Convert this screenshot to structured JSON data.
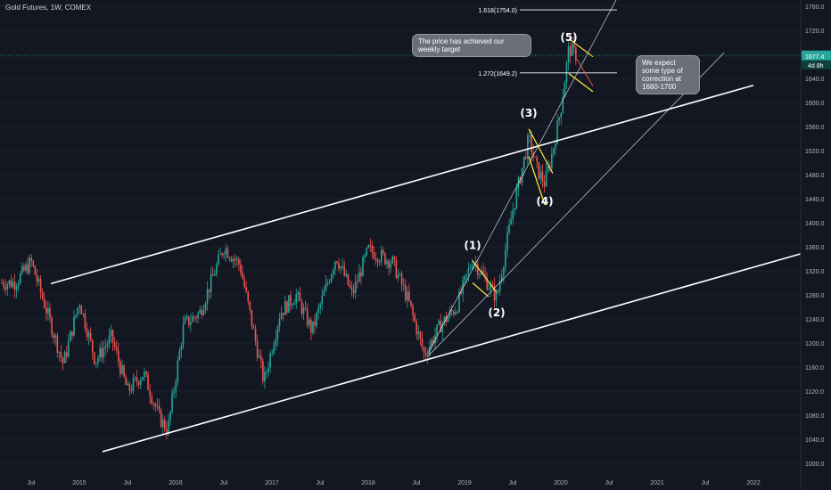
{
  "header": {
    "symbol": "Gold Futures, 1W, COMEX"
  },
  "annotations": {
    "target_note": "The price has achieved our weekly target",
    "correction_note": "We expect some type of correction at 1680-1700"
  },
  "price_tag": {
    "value": "1677.4",
    "countdown": "4d 8h"
  },
  "colors": {
    "background": "#131722",
    "up": "#26a69a",
    "down": "#ef5350",
    "trendline": "#ffffff",
    "fib": "#ffffff",
    "wave_marker": "#ffeb3b",
    "price_line": "#26a69a",
    "axis_text": "#b2b5be"
  },
  "chart_data": {
    "type": "candlestick",
    "title": "Gold Futures, 1W, COMEX",
    "ylim": [
      985,
      1773
    ],
    "x_tick_labels": [
      "Jul",
      "2015",
      "Jul",
      "2016",
      "Jul",
      "2017",
      "Jul",
      "2018",
      "Jul",
      "2019",
      "Jul",
      "2020",
      "Jul",
      "2021",
      "Jul",
      "2022"
    ],
    "y_tick_labels": [
      1000,
      1040,
      1080,
      1120,
      1160,
      1200,
      1240,
      1280,
      1320,
      1360,
      1400,
      1440,
      1480,
      1520,
      1560,
      1600,
      1640,
      1680,
      1720,
      1760
    ],
    "last_price": 1677.4,
    "fib_levels": [
      {
        "label": "1.618(1754.0)",
        "value": 1754.0
      },
      {
        "label": "1.272(1649.2)",
        "value": 1649.2
      }
    ],
    "wave_labels": [
      {
        "label": "(1)",
        "date": "2019-02",
        "price": 1346
      },
      {
        "label": "(2)",
        "date": "2019-05",
        "price": 1270
      },
      {
        "label": "(3)",
        "date": "2019-09",
        "price": 1566
      },
      {
        "label": "(4)",
        "date": "2019-11",
        "price": 1455
      },
      {
        "label": "(5)",
        "date": "2020-02",
        "price": 1692
      }
    ],
    "price_path": [
      [
        "2014-05",
        1300
      ],
      [
        "2014-07",
        1335
      ],
      [
        "2014-09",
        1250
      ],
      [
        "2014-11",
        1165
      ],
      [
        "2015-01",
        1270
      ],
      [
        "2015-03",
        1170
      ],
      [
        "2015-05",
        1210
      ],
      [
        "2015-07",
        1120
      ],
      [
        "2015-09",
        1150
      ],
      [
        "2015-11",
        1075
      ],
      [
        "2015-12",
        1055
      ],
      [
        "2016-02",
        1230
      ],
      [
        "2016-04",
        1250
      ],
      [
        "2016-07",
        1360
      ],
      [
        "2016-09",
        1330
      ],
      [
        "2016-11",
        1200
      ],
      [
        "2016-12",
        1135
      ],
      [
        "2017-02",
        1250
      ],
      [
        "2017-04",
        1280
      ],
      [
        "2017-06",
        1220
      ],
      [
        "2017-09",
        1345
      ],
      [
        "2017-11",
        1280
      ],
      [
        "2018-01",
        1355
      ],
      [
        "2018-04",
        1335
      ],
      [
        "2018-06",
        1270
      ],
      [
        "2018-08",
        1180
      ],
      [
        "2018-10",
        1230
      ],
      [
        "2018-12",
        1260
      ],
      [
        "2019-02",
        1340
      ],
      [
        "2019-05",
        1275
      ],
      [
        "2019-07",
        1420
      ],
      [
        "2019-09",
        1540
      ],
      [
        "2019-10",
        1490
      ],
      [
        "2019-11",
        1465
      ],
      [
        "2019-12",
        1520
      ],
      [
        "2020-01",
        1590
      ],
      [
        "2020-02",
        1690
      ],
      [
        "2020-03",
        1677.4
      ]
    ]
  }
}
